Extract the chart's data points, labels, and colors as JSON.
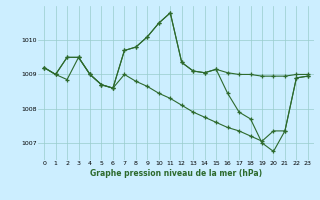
{
  "title": "Graphe pression niveau de la mer (hPa)",
  "bg_color": "#cceeff",
  "grid_color": "#99cccc",
  "line_color": "#2d6a2d",
  "xlim": [
    -0.5,
    23.5
  ],
  "ylim": [
    1006.5,
    1011.0
  ],
  "yticks": [
    1007,
    1008,
    1009,
    1010
  ],
  "xticks": [
    0,
    1,
    2,
    3,
    4,
    5,
    6,
    7,
    8,
    9,
    10,
    11,
    12,
    13,
    14,
    15,
    16,
    17,
    18,
    19,
    20,
    21,
    22,
    23
  ],
  "series": [
    [
      1009.2,
      1009.0,
      1009.5,
      1009.5,
      1009.0,
      1008.7,
      1008.6,
      1009.7,
      1009.8,
      1010.1,
      1010.5,
      1010.8,
      1009.35,
      1009.1,
      1009.05,
      1009.15,
      1009.05,
      1009.0,
      1009.0,
      1008.95,
      1008.95,
      1008.95,
      1009.0,
      1009.0
    ],
    [
      1009.2,
      1009.0,
      1009.5,
      1009.5,
      1009.0,
      1008.7,
      1008.6,
      1009.7,
      1009.8,
      1010.1,
      1010.5,
      1010.8,
      1009.35,
      1009.1,
      1009.05,
      1009.15,
      1008.45,
      1007.9,
      1007.7,
      1007.0,
      1006.75,
      1007.35,
      1008.9,
      1008.95
    ],
    [
      1009.2,
      1009.0,
      1008.85,
      1009.5,
      1009.0,
      1008.7,
      1008.6,
      1009.0,
      1008.8,
      1008.65,
      1008.45,
      1008.3,
      1008.1,
      1007.9,
      1007.75,
      1007.6,
      1007.45,
      1007.35,
      1007.2,
      1007.05,
      1007.35,
      1007.35,
      1008.9,
      1008.95
    ]
  ]
}
